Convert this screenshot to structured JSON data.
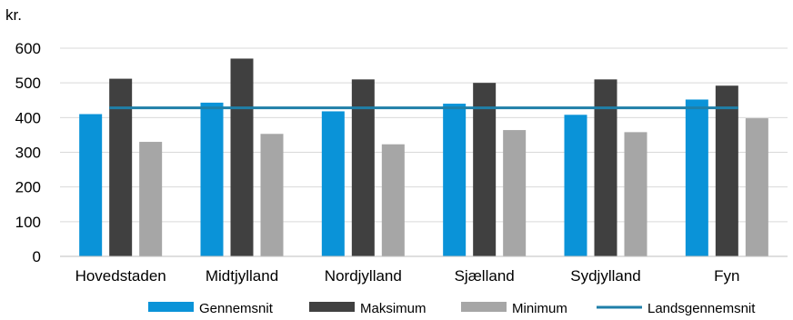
{
  "chart_data": {
    "type": "bar",
    "y_unit_label": "kr.",
    "categories": [
      "Hovedstaden",
      "Midtjylland",
      "Nordjylland",
      "Sjælland",
      "Sydjylland",
      "Fyn"
    ],
    "series": [
      {
        "name": "Gennemsnit",
        "color": "#0a93d8",
        "values": [
          410,
          443,
          418,
          440,
          408,
          452
        ]
      },
      {
        "name": "Maksimum",
        "color": "#404040",
        "values": [
          512,
          570,
          510,
          500,
          510,
          492
        ]
      },
      {
        "name": "Minimum",
        "color": "#a6a6a6",
        "values": [
          330,
          353,
          323,
          364,
          358,
          398
        ]
      }
    ],
    "reference_line": {
      "name": "Landsgennemsnit",
      "color": "#1f7fa8",
      "value": 428
    },
    "ylim": [
      0,
      600
    ],
    "yticks": [
      0,
      100,
      200,
      300,
      400,
      500,
      600
    ],
    "grid": true,
    "legend_position": "bottom-right"
  }
}
